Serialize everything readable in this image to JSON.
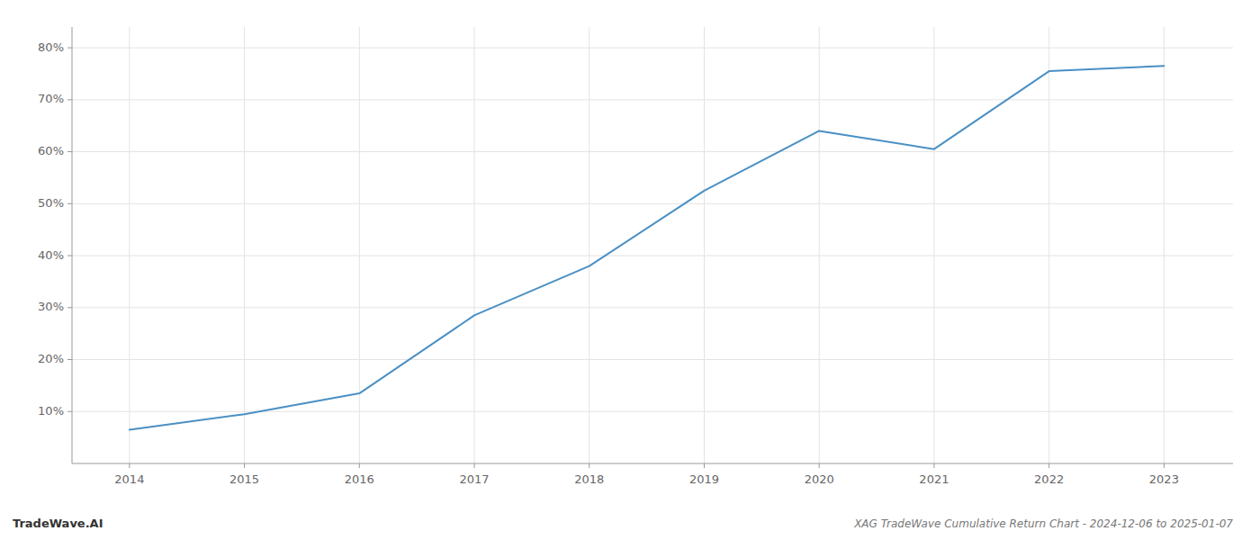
{
  "chart_data": {
    "type": "line",
    "title": "XAG TradeWave Cumulative Return Chart - 2024-12-06 to 2025-01-07",
    "annotations": [
      "TradeWave.AI"
    ],
    "x": [
      2014,
      2015,
      2016,
      2017,
      2018,
      2019,
      2020,
      2021,
      2022,
      2023
    ],
    "values": [
      6.5,
      9.5,
      13.5,
      28.5,
      38.0,
      52.5,
      64.0,
      60.5,
      75.5,
      76.5
    ],
    "color": "#4a90c4",
    "xlim": [
      2013.5,
      2023.6
    ],
    "ylim": [
      0,
      84
    ],
    "xticks": [
      2014,
      2015,
      2016,
      2017,
      2018,
      2019,
      2020,
      2021,
      2022,
      2023
    ],
    "yticks": [
      {
        "value": 10,
        "label": "10%"
      },
      {
        "value": 20,
        "label": "20%"
      },
      {
        "value": 30,
        "label": "30%"
      },
      {
        "value": 40,
        "label": "40%"
      },
      {
        "value": 50,
        "label": "50%"
      },
      {
        "value": 60,
        "label": "60%"
      },
      {
        "value": 70,
        "label": "70%"
      },
      {
        "value": 80,
        "label": "80%"
      }
    ],
    "grid": true
  }
}
